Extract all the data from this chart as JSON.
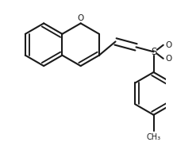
{
  "bg_color": "#ffffff",
  "line_color": "#1a1a1a",
  "lw": 1.5,
  "font_size": 7.5,
  "atoms": {
    "O_label": "O",
    "S_label": "S",
    "CH3_label": "CH₃"
  }
}
